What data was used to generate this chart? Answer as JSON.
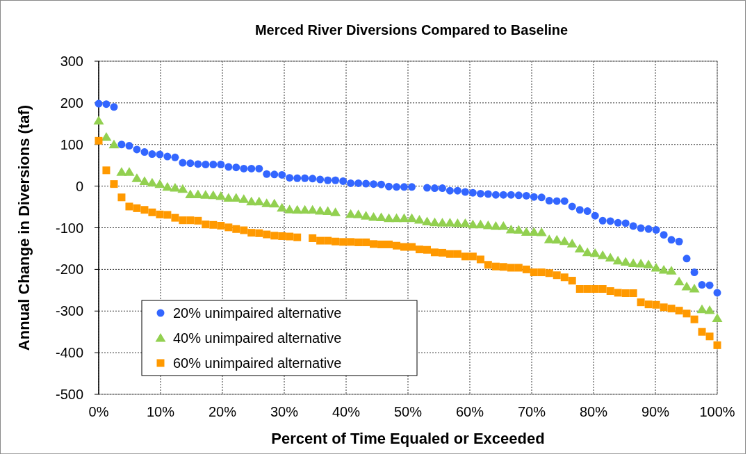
{
  "chart_data": {
    "type": "scatter",
    "title": "Merced River Diversions Compared to Baseline",
    "xlabel": "Percent of Time Equaled or Exceeded",
    "ylabel": "Annual Change in Diversions (taf)",
    "x": [
      0,
      1.23,
      2.47,
      3.7,
      4.94,
      6.17,
      7.41,
      8.64,
      9.88,
      11.11,
      12.35,
      13.58,
      14.81,
      16.05,
      17.28,
      18.52,
      19.75,
      20.99,
      22.22,
      23.46,
      24.69,
      25.93,
      27.16,
      28.4,
      29.63,
      30.86,
      32.1,
      33.33,
      34.57,
      35.8,
      37.04,
      38.27,
      39.51,
      40.74,
      41.98,
      43.21,
      44.44,
      45.68,
      46.91,
      48.15,
      49.38,
      50.62,
      51.85,
      53.09,
      54.32,
      55.56,
      56.79,
      58.02,
      59.26,
      60.49,
      61.73,
      62.96,
      64.2,
      65.43,
      66.67,
      67.9,
      69.14,
      70.37,
      71.6,
      72.84,
      74.07,
      75.31,
      76.54,
      77.78,
      79.01,
      80.25,
      81.48,
      82.72,
      83.95,
      85.19,
      86.42,
      87.65,
      88.89,
      90.12,
      91.36,
      92.59,
      93.83,
      95.06,
      96.3,
      97.53,
      98.77,
      100
    ],
    "series": [
      {
        "name": "20% unimpaired alternative",
        "color": "#3366ff",
        "marker": "circle",
        "values": [
          198,
          197,
          190,
          100,
          97,
          88,
          82,
          77,
          76,
          71,
          69,
          56,
          55,
          53,
          52,
          52,
          52,
          46,
          45,
          42,
          42,
          42,
          29,
          28,
          27,
          20,
          19,
          19,
          18,
          16,
          14,
          14,
          12,
          7,
          7,
          6,
          5,
          4,
          -1,
          -2,
          -2,
          -2,
          null,
          -4,
          -5,
          -5,
          -11,
          -11,
          -14,
          -16,
          -18,
          -19,
          -21,
          -21,
          -21,
          -22,
          -23,
          -26,
          -27,
          -35,
          -36,
          -36,
          -49,
          -57,
          -60,
          -71,
          -83,
          -84,
          -88,
          -89,
          -96,
          -101,
          -103,
          -105,
          -117,
          -129,
          -133,
          -174,
          -207,
          -237,
          -238,
          -256
        ]
      },
      {
        "name": "40% unimpaired alternative",
        "color": "#92d050",
        "marker": "triangle",
        "values": [
          157,
          118,
          100,
          34,
          34,
          19,
          12,
          8,
          5,
          -2,
          -4,
          -7,
          -20,
          -20,
          -21,
          -22,
          -24,
          -28,
          -28,
          -31,
          -37,
          -37,
          -41,
          -42,
          -52,
          -56,
          -57,
          -57,
          -57,
          -59,
          -60,
          -63,
          null,
          -67,
          -68,
          -71,
          -74,
          -75,
          -77,
          -77,
          -77,
          -77,
          -81,
          -85,
          -87,
          -88,
          -88,
          -89,
          -89,
          -92,
          -92,
          -94,
          -96,
          -96,
          -104,
          -105,
          -110,
          -110,
          -111,
          -128,
          -129,
          -132,
          -138,
          -150,
          -159,
          -161,
          -166,
          -172,
          -179,
          -182,
          -185,
          -186,
          -188,
          -196,
          -201,
          -203,
          -229,
          -241,
          -246,
          -296,
          -298,
          -317
        ]
      },
      {
        "name": "60% unimpaired alternative",
        "color": "#ff9900",
        "marker": "square",
        "values": [
          109,
          38,
          5,
          -27,
          -49,
          -53,
          -57,
          -63,
          -68,
          -69,
          -76,
          -82,
          -82,
          -83,
          -92,
          -93,
          -95,
          -99,
          -103,
          -106,
          -112,
          -113,
          -116,
          -119,
          -120,
          -121,
          -123,
          null,
          -125,
          -131,
          -131,
          -133,
          -134,
          -134,
          -135,
          -135,
          -139,
          -140,
          -140,
          -143,
          -146,
          -146,
          -152,
          -153,
          -159,
          -160,
          -163,
          -163,
          -169,
          -169,
          -176,
          -189,
          -193,
          -194,
          -196,
          -196,
          -200,
          -207,
          -207,
          -209,
          -214,
          -219,
          -227,
          -247,
          -247,
          -247,
          -247,
          -252,
          -256,
          -257,
          -257,
          -279,
          -284,
          -285,
          -291,
          -294,
          -299,
          -306,
          -320,
          -350,
          -361,
          -382
        ]
      }
    ],
    "xlim": [
      0,
      100
    ],
    "xticks": [
      {
        "value": 0,
        "label": "0%"
      },
      {
        "value": 10,
        "label": "10%"
      },
      {
        "value": 20,
        "label": "20%"
      },
      {
        "value": 30,
        "label": "30%"
      },
      {
        "value": 40,
        "label": "40%"
      },
      {
        "value": 50,
        "label": "50%"
      },
      {
        "value": 60,
        "label": "60%"
      },
      {
        "value": 70,
        "label": "70%"
      },
      {
        "value": 80,
        "label": "80%"
      },
      {
        "value": 90,
        "label": "90%"
      },
      {
        "value": 100,
        "label": "100%"
      }
    ],
    "ylim": [
      -500,
      300
    ],
    "yticks": [
      -500,
      -400,
      -300,
      -200,
      -100,
      0,
      100,
      200,
      300
    ],
    "grid": true,
    "legend": "bottom left"
  }
}
